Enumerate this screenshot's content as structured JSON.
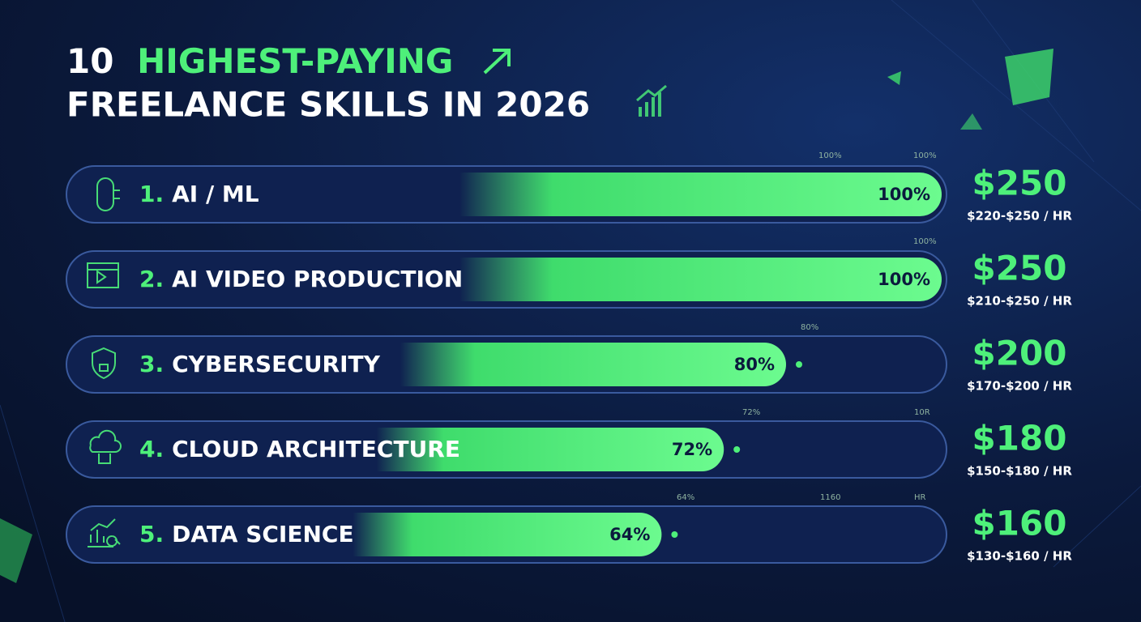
{
  "chart_data": {
    "type": "bar",
    "title": [
      "10",
      "HIGHEST-PAYING",
      "FREELANCE SKILLS IN 2026"
    ],
    "ranks": [
      "1.",
      "2.",
      "3.",
      "4.",
      "5."
    ],
    "categories": [
      "AI / ML",
      "AI VIDEO PRODUCTION",
      "CYBERSECURITY",
      "CLOUD ARCHITECTURE",
      "DATA SCIENCE"
    ],
    "values": [
      100,
      100,
      80,
      72,
      64
    ],
    "value_labels": [
      "100%",
      "100%",
      "80%",
      "72%",
      "64%"
    ],
    "rates": [
      "$250",
      "$250",
      "$200",
      "$180",
      "$160"
    ],
    "rate_ranges": [
      "$220-$250 / HR",
      "$210-$250 / HR",
      "$170-$200 / HR",
      "$150-$180 / HR",
      "$130-$160 / HR"
    ],
    "xlim": [
      0,
      100
    ],
    "color": "#4ef07a",
    "annotations": [
      "100%",
      "100%",
      "100%",
      "80%",
      "72%",
      "10R",
      "64%",
      "1160",
      "HR"
    ]
  }
}
